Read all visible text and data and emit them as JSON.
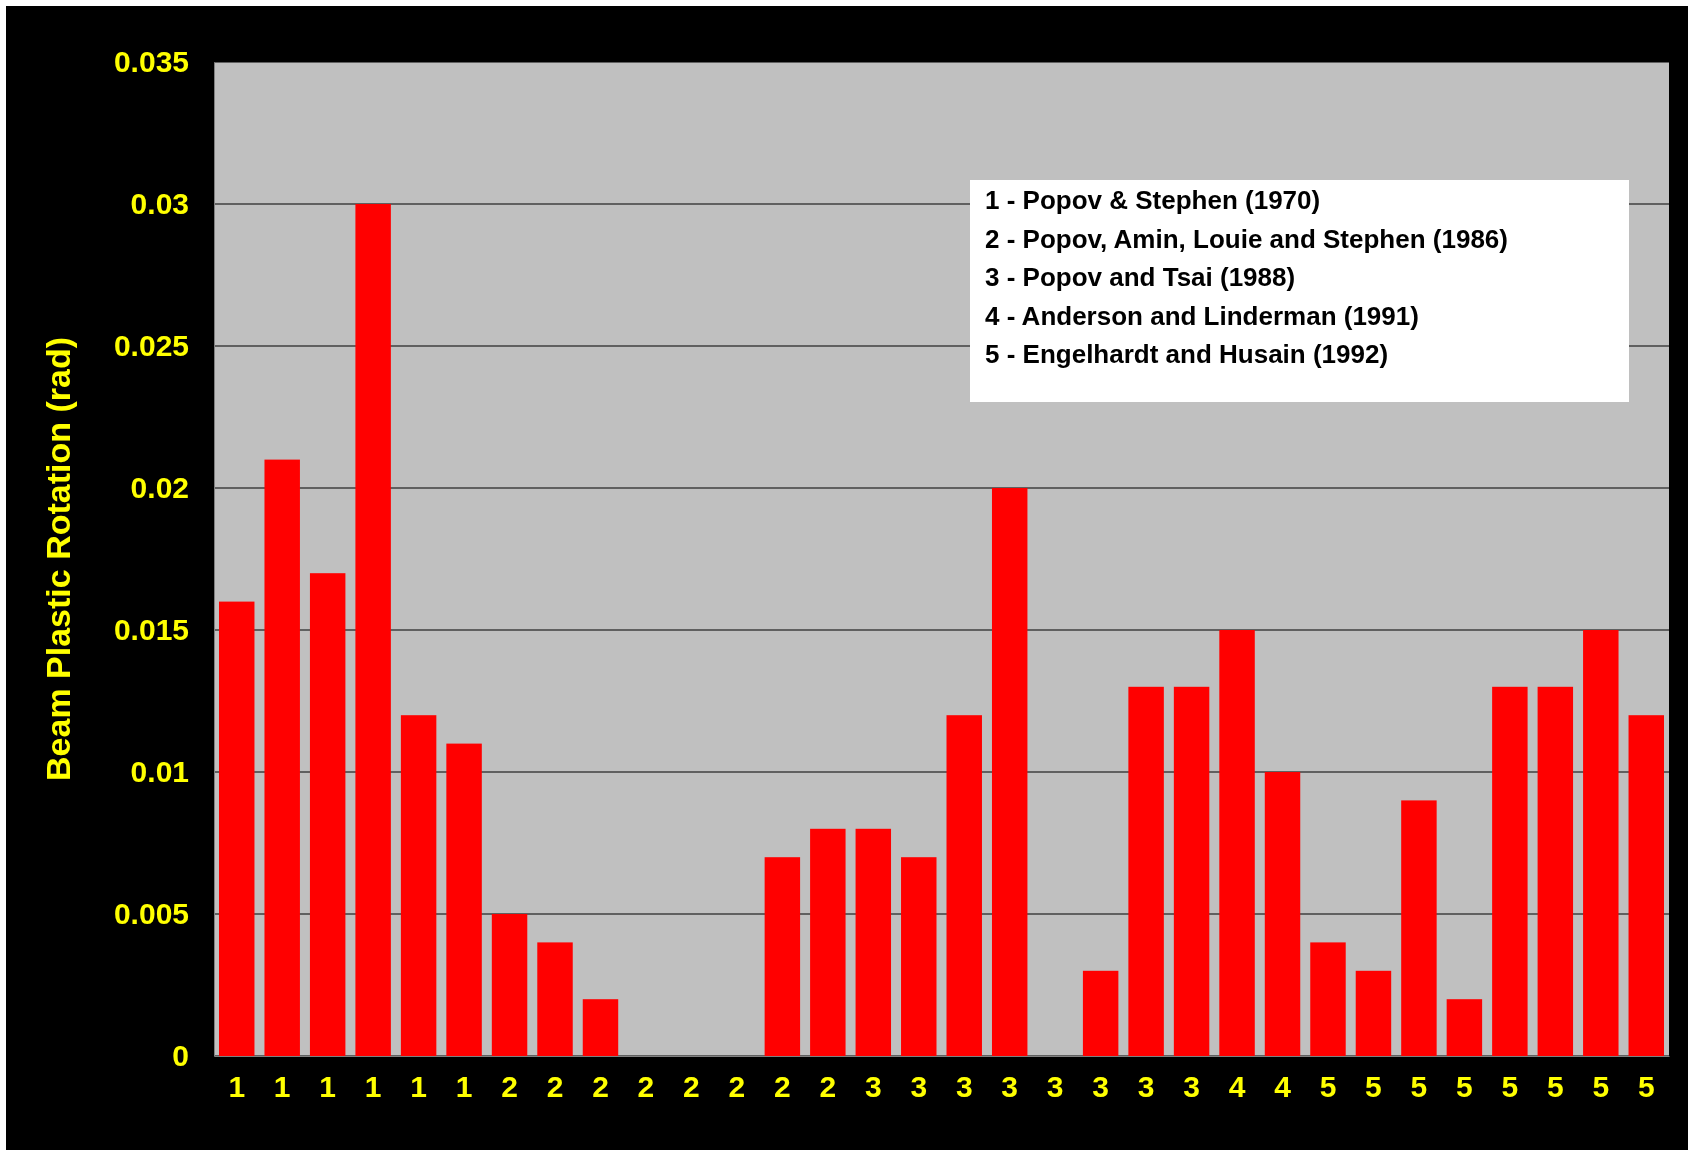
{
  "chart_data": {
    "type": "bar",
    "ylabel": "Beam Plastic Rotation (rad)",
    "categories": [
      "1",
      "1",
      "1",
      "1",
      "1",
      "1",
      "2",
      "2",
      "2",
      "2",
      "2",
      "2",
      "2",
      "2",
      "3",
      "3",
      "3",
      "3",
      "3",
      "3",
      "3",
      "3",
      "4",
      "4",
      "5",
      "5",
      "5",
      "5",
      "5",
      "5",
      "5",
      "5"
    ],
    "values": [
      0.016,
      0.021,
      0.017,
      0.03,
      0.012,
      0.011,
      0.005,
      0.004,
      0.002,
      0,
      0,
      0,
      0.007,
      0.008,
      0.008,
      0.007,
      0.012,
      0.02,
      0,
      0.003,
      0.013,
      0.013,
      0.015,
      0.01,
      0.004,
      0.003,
      0.009,
      0.002,
      0.013,
      0.013,
      0.015,
      0.012
    ],
    "color": "#ff0000",
    "ylim": [
      0,
      0.035
    ],
    "yticks": [
      0,
      0.005,
      0.01,
      0.015,
      0.02,
      0.025,
      0.03,
      0.035
    ],
    "grid": "y",
    "annotations": [
      "1 - Popov & Stephen (1970)",
      "2 - Popov, Amin, Louie and Stephen (1986)",
      "3 - Popov and Tsai (1988)",
      "4 - Anderson and Linderman (1991)",
      "5 - Engelhardt and Husain (1992)"
    ]
  }
}
